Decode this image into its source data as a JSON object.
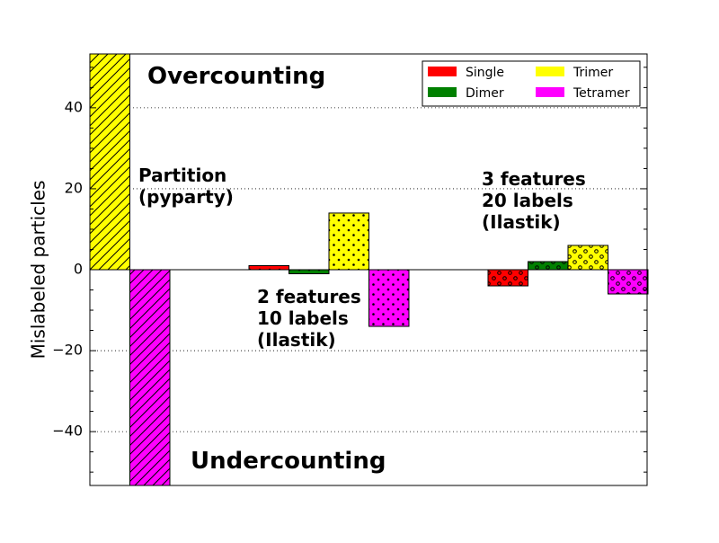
{
  "chart_data": {
    "type": "bar",
    "ylabel": "Mislabeled particles",
    "xlabel": "",
    "ylim": [
      -53.3,
      53.3
    ],
    "yticks": [
      -40,
      -20,
      0,
      20,
      40
    ],
    "ytick_labels": [
      "−40",
      "−20",
      "0",
      "20",
      "40"
    ],
    "grid": "y-dotted",
    "legend_position": "top-right",
    "legend": [
      {
        "label": "Single",
        "color": "#ff0000"
      },
      {
        "label": "Dimer",
        "color": "#008000"
      },
      {
        "label": "Trimer",
        "color": "#ffff00"
      },
      {
        "label": "Tetramer",
        "color": "#ff00ff"
      }
    ],
    "groups": [
      {
        "label_lines": [
          "Partition",
          "(pyparty)"
        ],
        "pattern": "diag",
        "values": [
          {
            "series": "Trimer",
            "value": 53.3
          },
          {
            "series": "Tetramer",
            "value": -53.3
          }
        ]
      },
      {
        "label_lines": [
          "2 features",
          "10 labels",
          "(Ilastik)"
        ],
        "pattern": "dots",
        "values": [
          {
            "series": "Single",
            "value": 1
          },
          {
            "series": "Dimer",
            "value": -1
          },
          {
            "series": "Trimer",
            "value": 14
          },
          {
            "series": "Tetramer",
            "value": -14
          }
        ]
      },
      {
        "label_lines": [
          "3 features",
          "20 labels",
          "(Ilastik)"
        ],
        "pattern": "circles",
        "values": [
          {
            "series": "Single",
            "value": -4
          },
          {
            "series": "Dimer",
            "value": 2
          },
          {
            "series": "Trimer",
            "value": 6
          },
          {
            "series": "Tetramer",
            "value": -6
          }
        ]
      }
    ],
    "annotations": {
      "overcounting": "Overcounting",
      "undercounting": "Undercounting"
    }
  }
}
